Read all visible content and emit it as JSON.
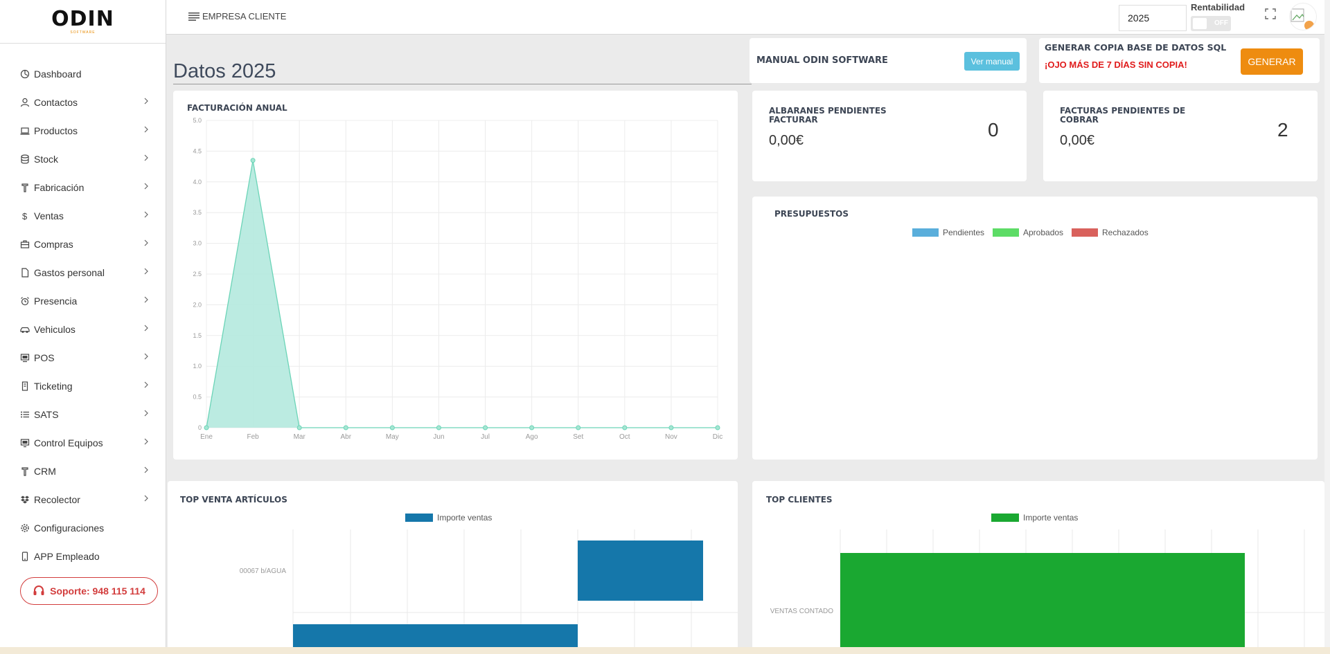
{
  "app": {
    "logo": "ODIN",
    "logo_sub": "SOFTWARE"
  },
  "sidebar": {
    "items": [
      {
        "label": "Dashboard",
        "icon": "dashboard-icon",
        "has_children": false
      },
      {
        "label": "Contactos",
        "icon": "user-icon",
        "has_children": true
      },
      {
        "label": "Productos",
        "icon": "laptop-icon",
        "has_children": true
      },
      {
        "label": "Stock",
        "icon": "database-icon",
        "has_children": true
      },
      {
        "label": "Fabricación",
        "icon": "hammer-icon",
        "has_children": true
      },
      {
        "label": "Ventas",
        "icon": "dollar-icon",
        "has_children": true
      },
      {
        "label": "Compras",
        "icon": "briefcase-icon",
        "has_children": true
      },
      {
        "label": "Gastos personal",
        "icon": "file-icon",
        "has_children": true
      },
      {
        "label": "Presencia",
        "icon": "alarm-clock-icon",
        "has_children": true
      },
      {
        "label": "Vehiculos",
        "icon": "car-icon",
        "has_children": true
      },
      {
        "label": "POS",
        "icon": "pos-terminal-icon",
        "has_children": true
      },
      {
        "label": "Ticketing",
        "icon": "ticket-icon",
        "has_children": true
      },
      {
        "label": "SATS",
        "icon": "list-icon",
        "has_children": true
      },
      {
        "label": "Control Equipos",
        "icon": "monitor-icon",
        "has_children": true
      },
      {
        "label": "CRM",
        "icon": "hammer-icon",
        "has_children": true
      },
      {
        "label": "Recolector",
        "icon": "dropbox-icon",
        "has_children": true
      },
      {
        "label": "Configuraciones",
        "icon": "gear-icon",
        "has_children": false
      },
      {
        "label": "APP Empleado",
        "icon": "mobile-icon",
        "has_children": false
      }
    ],
    "support_label": "Soporte: 948 115 114"
  },
  "topbar": {
    "company": "EMPRESA CLIENTE",
    "year_value": "2025",
    "rentabilidad_label": "Rentabilidad",
    "toggle_state": "OFF"
  },
  "page": {
    "title": "Datos 2025"
  },
  "manual": {
    "title": "MANUAL ODIN SOFTWARE",
    "button": "Ver manual"
  },
  "backup": {
    "title": "GENERAR COPIA BASE DE DATOS SQL",
    "warning": "¡OJO MÁS DE 7 DÍAS SIN COPIA!",
    "button": "GENERAR"
  },
  "kpis": {
    "albaranes": {
      "label_line1": "ALBARANES PENDIENTES",
      "label_line2": "FACTURAR",
      "amount": "0,00€",
      "count": "0"
    },
    "facturas": {
      "label_line1": "FACTURAS PENDIENTES DE",
      "label_line2": "COBRAR",
      "amount": "0,00€",
      "count": "2"
    }
  },
  "presupuestos": {
    "title": "PRESUPUESTOS",
    "legend": [
      {
        "name": "Pendientes",
        "color": "#5aaedb"
      },
      {
        "name": "Aprobados",
        "color": "#5ddc66"
      },
      {
        "name": "Rechazados",
        "color": "#d9615c"
      }
    ]
  },
  "colors": {
    "accent_orange": "#ee8c10",
    "info_blue": "#5bc0de",
    "danger_red": "#d23c3c",
    "area_fill": "#b7eadf",
    "area_line": "#6bd4b7"
  },
  "chart_data": [
    {
      "title": "FACTURACIÓN ANUAL",
      "type": "area",
      "categories": [
        "Ene",
        "Feb",
        "Mar",
        "Abr",
        "May",
        "Jun",
        "Jul",
        "Ago",
        "Set",
        "Oct",
        "Nov",
        "Dic"
      ],
      "values": [
        0,
        4.35,
        0,
        0,
        0,
        0,
        0,
        0,
        0,
        0,
        0,
        0
      ],
      "ylim": [
        0,
        5
      ],
      "yticks": [
        "0",
        "0.5",
        "1.0",
        "1.5",
        "2.0",
        "2.5",
        "3.0",
        "3.5",
        "4.0",
        "4.5",
        "5.0"
      ],
      "grid": true
    },
    {
      "title": "TOP VENTA ARTÍCULOS",
      "type": "bar",
      "orientation": "horizontal",
      "categories": [
        "00067 b/AGUA"
      ],
      "series": [
        {
          "name": "Importe ventas",
          "color": "#1577aa"
        }
      ],
      "grid": true
    },
    {
      "title": "TOP CLIENTES",
      "type": "bar",
      "orientation": "horizontal",
      "categories": [
        "VENTAS CONTADO"
      ],
      "series": [
        {
          "name": "Importe ventas",
          "color": "#1aa831"
        }
      ],
      "grid": true
    }
  ]
}
